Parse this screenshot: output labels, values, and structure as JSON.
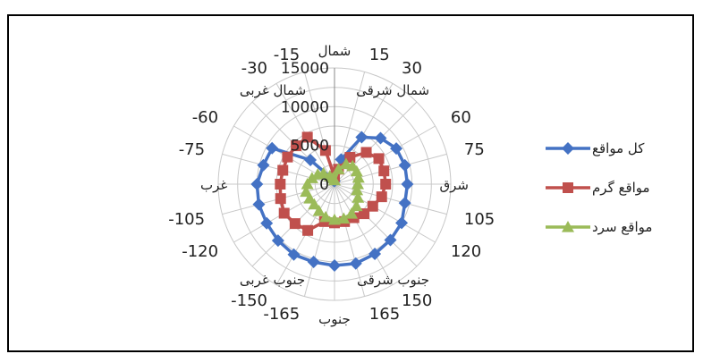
{
  "chart_data": {
    "type": "radar",
    "angles": [
      -180,
      -165,
      -150,
      -135,
      -120,
      -105,
      -90,
      -75,
      -60,
      -45,
      -30,
      -15,
      0,
      15,
      30,
      45,
      60,
      75,
      90,
      105,
      120,
      135,
      150,
      165
    ],
    "radial_ticks": [
      {
        "value": 0,
        "label": "0"
      },
      {
        "value": 5000,
        "label": "5000"
      },
      {
        "value": 10000,
        "label": "10000"
      },
      {
        "value": 15000,
        "label": "15000"
      }
    ],
    "angle_labels": [
      {
        "angle": 0,
        "label": "شمال"
      },
      {
        "angle": 15,
        "label": "15"
      },
      {
        "angle": 30,
        "label": "30"
      },
      {
        "angle": 45,
        "label": "شمال شرقی"
      },
      {
        "angle": 60,
        "label": "60"
      },
      {
        "angle": 75,
        "label": "75"
      },
      {
        "angle": 90,
        "label": "شرق"
      },
      {
        "angle": 105,
        "label": "105"
      },
      {
        "angle": 120,
        "label": "120"
      },
      {
        "angle": 135,
        "label": "جنوب شرقی"
      },
      {
        "angle": 150,
        "label": "150"
      },
      {
        "angle": 165,
        "label": "165"
      },
      {
        "angle": 180,
        "label": "جنوب"
      },
      {
        "angle": -165,
        "label": "-165"
      },
      {
        "angle": -150,
        "label": "-150"
      },
      {
        "angle": -135,
        "label": "جنوب غربی"
      },
      {
        "angle": -120,
        "label": "-120"
      },
      {
        "angle": -105,
        "label": "-105"
      },
      {
        "angle": -90,
        "label": "غرب"
      },
      {
        "angle": -75,
        "label": "-75"
      },
      {
        "angle": -60,
        "label": "-60"
      },
      {
        "angle": -45,
        "label": "شمال غربی"
      },
      {
        "angle": -30,
        "label": "-30"
      },
      {
        "angle": -15,
        "label": "-15"
      }
    ],
    "rmax": 15000,
    "series": [
      {
        "name": "کل مواقع",
        "color": "#4472C4",
        "marker": "diamond",
        "points": [
          {
            "angle": 15,
            "r": 3300
          },
          {
            "angle": 30,
            "r": 7000
          },
          {
            "angle": 45,
            "r": 8400
          },
          {
            "angle": 60,
            "r": 9200
          },
          {
            "angle": 75,
            "r": 9400
          },
          {
            "angle": 90,
            "r": 9400
          },
          {
            "angle": 105,
            "r": 9400
          },
          {
            "angle": 120,
            "r": 10000
          },
          {
            "angle": 135,
            "r": 10200
          },
          {
            "angle": 150,
            "r": 10400
          },
          {
            "angle": 165,
            "r": 10600
          },
          {
            "angle": 180,
            "r": 10500
          },
          {
            "angle": -165,
            "r": 10400
          },
          {
            "angle": -150,
            "r": 10500
          },
          {
            "angle": -135,
            "r": 10300
          },
          {
            "angle": -120,
            "r": 10100
          },
          {
            "angle": -105,
            "r": 10100
          },
          {
            "angle": -90,
            "r": 10000
          },
          {
            "angle": -75,
            "r": 9500
          },
          {
            "angle": -60,
            "r": 9300
          },
          {
            "angle": -45,
            "r": 4400
          },
          {
            "angle": -30,
            "r": 1000
          },
          {
            "angle": -15,
            "r": 500
          },
          {
            "angle": 0,
            "r": 400
          }
        ]
      },
      {
        "name": "مواقع گرم",
        "color": "#C0504D",
        "marker": "square",
        "points": [
          {
            "angle": 15,
            "r": 2000
          },
          {
            "angle": 30,
            "r": 4000
          },
          {
            "angle": 45,
            "r": 5800
          },
          {
            "angle": 60,
            "r": 6600
          },
          {
            "angle": 75,
            "r": 6600
          },
          {
            "angle": 90,
            "r": 6600
          },
          {
            "angle": 105,
            "r": 6300
          },
          {
            "angle": 120,
            "r": 5700
          },
          {
            "angle": 135,
            "r": 5400
          },
          {
            "angle": 150,
            "r": 5000
          },
          {
            "angle": 165,
            "r": 5000
          },
          {
            "angle": 180,
            "r": 5000
          },
          {
            "angle": -165,
            "r": 5000
          },
          {
            "angle": -150,
            "r": 6900
          },
          {
            "angle": -135,
            "r": 7200
          },
          {
            "angle": -120,
            "r": 7500
          },
          {
            "angle": -105,
            "r": 7200
          },
          {
            "angle": -90,
            "r": 7000
          },
          {
            "angle": -75,
            "r": 6900
          },
          {
            "angle": -60,
            "r": 7000
          },
          {
            "angle": -45,
            "r": 7000
          },
          {
            "angle": -30,
            "r": 7000
          },
          {
            "angle": -15,
            "r": 4500
          },
          {
            "angle": 0,
            "r": 1000
          }
        ]
      },
      {
        "name": "مواقع سرد",
        "color": "#9BBB59",
        "marker": "triangle",
        "points": [
          {
            "angle": 0,
            "r": 500
          },
          {
            "angle": 15,
            "r": 2000
          },
          {
            "angle": 30,
            "r": 3000
          },
          {
            "angle": 45,
            "r": 3300
          },
          {
            "angle": 60,
            "r": 3300
          },
          {
            "angle": 75,
            "r": 3200
          },
          {
            "angle": 90,
            "r": 3000
          },
          {
            "angle": 105,
            "r": 3000
          },
          {
            "angle": 120,
            "r": 3500
          },
          {
            "angle": 135,
            "r": 4000
          },
          {
            "angle": 150,
            "r": 4400
          },
          {
            "angle": 165,
            "r": 4600
          },
          {
            "angle": 180,
            "r": 4600
          },
          {
            "angle": -165,
            "r": 4400
          },
          {
            "angle": -150,
            "r": 4000
          },
          {
            "angle": -135,
            "r": 3700
          },
          {
            "angle": -120,
            "r": 3700
          },
          {
            "angle": -105,
            "r": 3800
          },
          {
            "angle": -90,
            "r": 3500
          },
          {
            "angle": -75,
            "r": 3000
          },
          {
            "angle": -60,
            "r": 2500
          },
          {
            "angle": -45,
            "r": 2000
          },
          {
            "angle": -30,
            "r": 1200
          },
          {
            "angle": -15,
            "r": 800
          }
        ]
      }
    ],
    "grid": true,
    "legend_position": "right"
  }
}
